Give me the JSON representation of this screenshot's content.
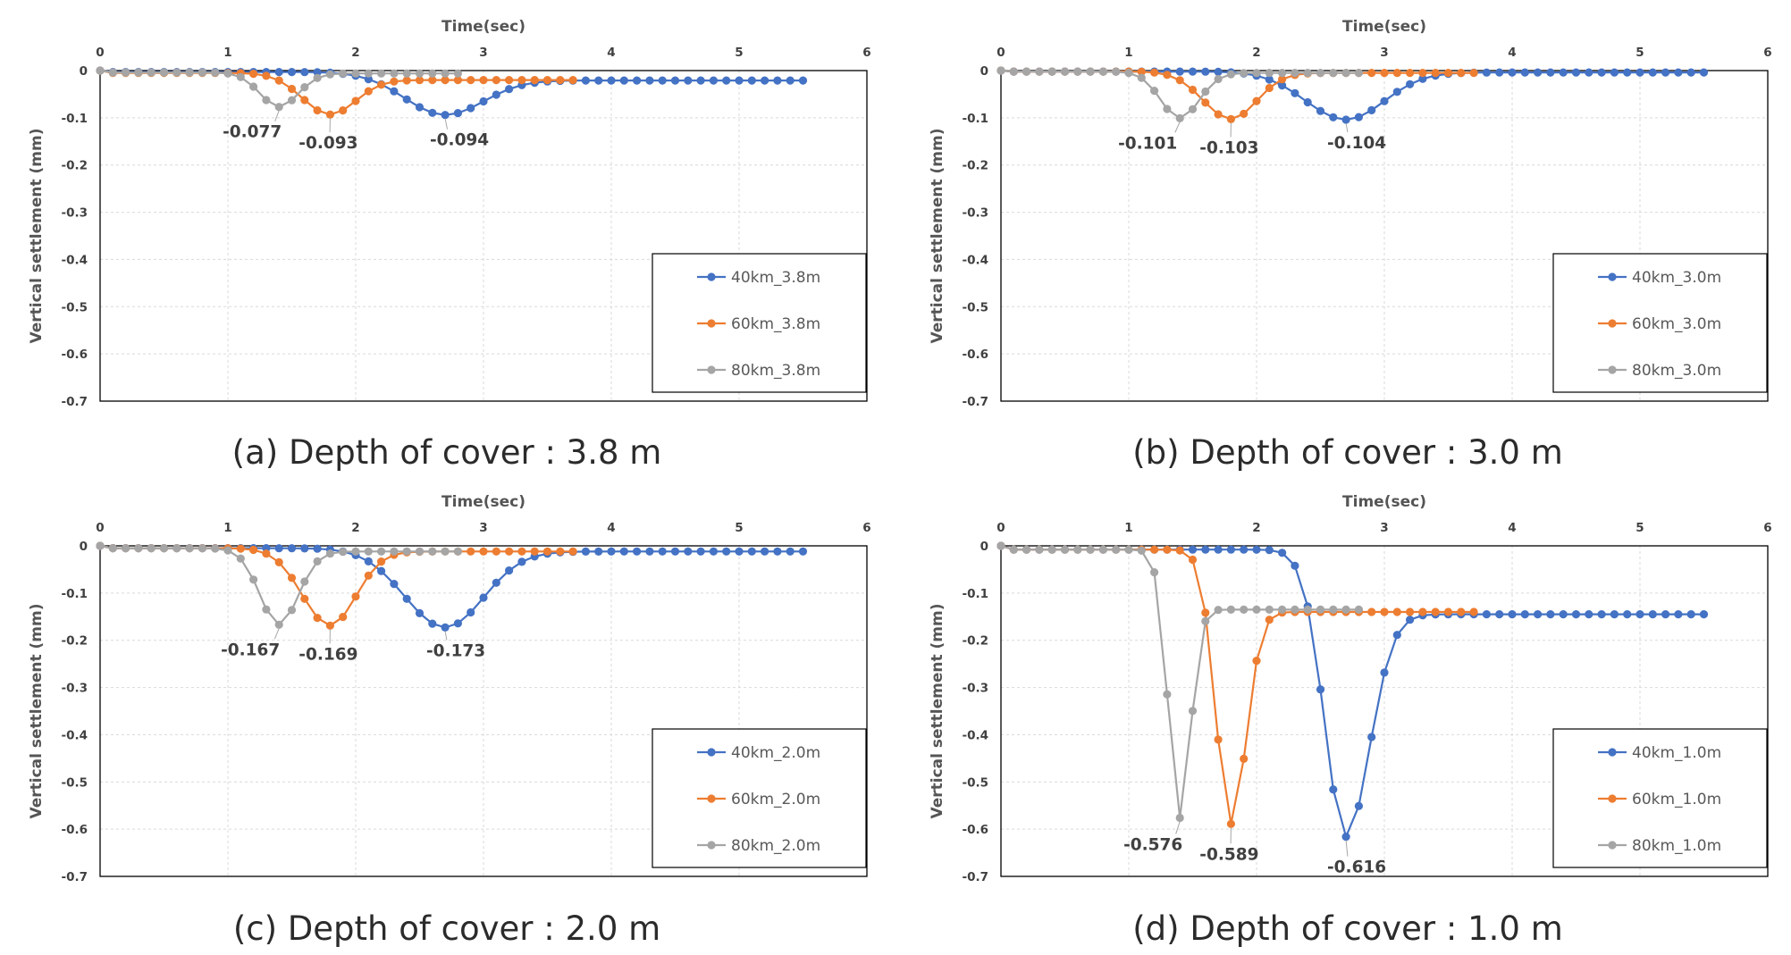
{
  "chart_data": [
    {
      "type": "line",
      "caption": "(a) Depth of cover : 3.8 m",
      "xlabel": "Time(sec)",
      "ylabel": "Vertical settlement (mm)",
      "xlim": [
        0,
        6
      ],
      "ylim": [
        -0.7,
        0
      ],
      "x_ticks": [
        "0",
        "1",
        "2",
        "3",
        "4",
        "5",
        "6"
      ],
      "y_ticks": [
        "0",
        "-0.1",
        "-0.2",
        "-0.3",
        "-0.4",
        "-0.5",
        "-0.6",
        "-0.7"
      ],
      "grid": true,
      "legend_position": "bottom-right",
      "series": [
        {
          "name": "40km_3.8m",
          "color": "#4472C4",
          "x_end": 5.5,
          "baseline": -0.003,
          "peak_t": 2.7,
          "peak": -0.094,
          "rise": 0.95,
          "recovery_width": 0.9,
          "residual": -0.021,
          "label": "-0.094"
        },
        {
          "name": "60km_3.8m",
          "color": "#ED7D31",
          "x_end": 3.75,
          "baseline": -0.005,
          "peak_t": 1.8,
          "peak": -0.093,
          "rise": 0.65,
          "recovery_width": 0.6,
          "residual": -0.02,
          "label": "-0.093"
        },
        {
          "name": "80km_3.8m",
          "color": "#A5A5A5",
          "x_end": 2.8,
          "baseline": -0.004,
          "peak_t": 1.4,
          "peak": -0.077,
          "rise": 0.45,
          "recovery_width": 0.45,
          "residual": -0.006,
          "label": "-0.077"
        }
      ]
    },
    {
      "type": "line",
      "caption": "(b) Depth of cover : 3.0 m",
      "xlabel": "Time(sec)",
      "ylabel": "Vertical settlement (mm)",
      "xlim": [
        0,
        6
      ],
      "ylim": [
        -0.7,
        0
      ],
      "x_ticks": [
        "0",
        "1",
        "2",
        "3",
        "4",
        "5",
        "6"
      ],
      "y_ticks": [
        "0",
        "-0.1",
        "-0.2",
        "-0.3",
        "-0.4",
        "-0.5",
        "-0.6",
        "-0.7"
      ],
      "grid": true,
      "legend_position": "bottom-right",
      "series": [
        {
          "name": "40km_3.0m",
          "color": "#4472C4",
          "x_end": 5.5,
          "baseline": -0.002,
          "peak_t": 2.7,
          "peak": -0.104,
          "rise": 0.95,
          "recovery_width": 0.9,
          "residual": -0.004,
          "label": "-0.104"
        },
        {
          "name": "60km_3.0m",
          "color": "#ED7D31",
          "x_end": 3.75,
          "baseline": -0.002,
          "peak_t": 1.8,
          "peak": -0.103,
          "rise": 0.65,
          "recovery_width": 0.6,
          "residual": -0.005,
          "label": "-0.103"
        },
        {
          "name": "80km_3.0m",
          "color": "#A5A5A5",
          "x_end": 2.8,
          "baseline": -0.002,
          "peak_t": 1.4,
          "peak": -0.101,
          "rise": 0.45,
          "recovery_width": 0.45,
          "residual": -0.005,
          "label": "-0.101"
        }
      ]
    },
    {
      "type": "line",
      "caption": "(c) Depth of cover : 2.0 m",
      "xlabel": "Time(sec)",
      "ylabel": "Vertical settlement (mm)",
      "xlim": [
        0,
        6
      ],
      "ylim": [
        -0.7,
        0
      ],
      "x_ticks": [
        "0",
        "1",
        "2",
        "3",
        "4",
        "5",
        "6"
      ],
      "y_ticks": [
        "0",
        "-0.1",
        "-0.2",
        "-0.3",
        "-0.4",
        "-0.5",
        "-0.6",
        "-0.7"
      ],
      "grid": true,
      "legend_position": "bottom-right",
      "series": [
        {
          "name": "40km_2.0m",
          "color": "#4472C4",
          "x_end": 5.5,
          "baseline": -0.005,
          "peak_t": 2.7,
          "peak": -0.173,
          "rise": 0.95,
          "recovery_width": 0.9,
          "residual": -0.012,
          "label": "-0.173"
        },
        {
          "name": "60km_2.0m",
          "color": "#ED7D31",
          "x_end": 3.75,
          "baseline": -0.005,
          "peak_t": 1.8,
          "peak": -0.169,
          "rise": 0.65,
          "recovery_width": 0.6,
          "residual": -0.012,
          "label": "-0.169"
        },
        {
          "name": "80km_2.0m",
          "color": "#A5A5A5",
          "x_end": 2.8,
          "baseline": -0.005,
          "peak_t": 1.4,
          "peak": -0.167,
          "rise": 0.45,
          "recovery_width": 0.45,
          "residual": -0.012,
          "label": "-0.167"
        }
      ]
    },
    {
      "type": "line",
      "caption": "(d) Depth of cover : 1.0 m",
      "xlabel": "Time(sec)",
      "ylabel": "Vertical settlement (mm)",
      "xlim": [
        0,
        6
      ],
      "ylim": [
        -0.7,
        0
      ],
      "x_ticks": [
        "0",
        "1",
        "2",
        "3",
        "4",
        "5",
        "6"
      ],
      "y_ticks": [
        "0",
        "-0.1",
        "-0.2",
        "-0.3",
        "-0.4",
        "-0.5",
        "-0.6",
        "-0.7"
      ],
      "grid": true,
      "legend_position": "bottom-right",
      "series": [
        {
          "name": "40km_1.0m",
          "color": "#4472C4",
          "x_end": 5.5,
          "baseline": -0.008,
          "peak_t": 2.7,
          "peak": -0.616,
          "rise": 0.5,
          "recovery_width": 0.55,
          "residual": -0.145,
          "label": "-0.616"
        },
        {
          "name": "60km_1.0m",
          "color": "#ED7D31",
          "x_end": 3.75,
          "baseline": -0.008,
          "peak_t": 1.8,
          "peak": -0.589,
          "rise": 0.35,
          "recovery_width": 0.35,
          "residual": -0.14,
          "label": "-0.589"
        },
        {
          "name": "80km_1.0m",
          "color": "#A5A5A5",
          "x_end": 2.8,
          "baseline": -0.008,
          "peak_t": 1.4,
          "peak": -0.576,
          "rise": 0.27,
          "recovery_width": 0.25,
          "residual": -0.135,
          "label": "-0.576"
        }
      ]
    }
  ]
}
